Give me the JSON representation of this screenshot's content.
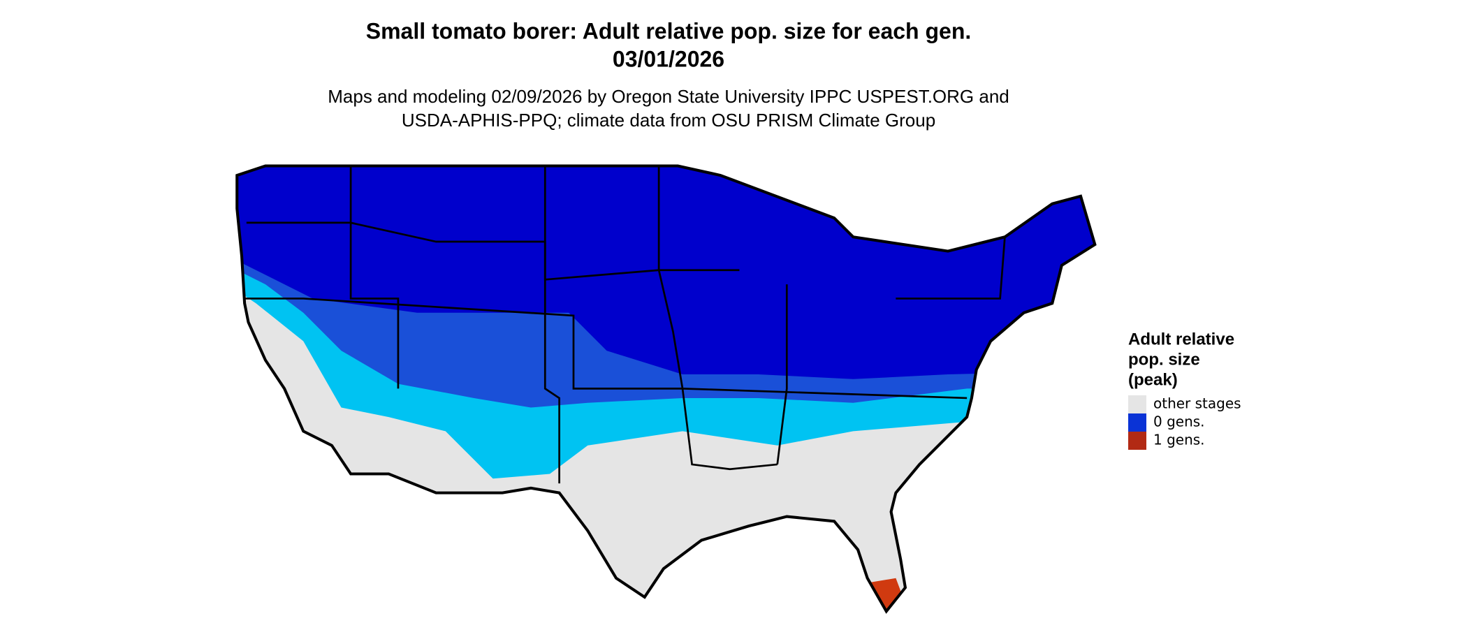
{
  "header": {
    "title": "Small tomato borer: Adult relative pop. size for each gen.",
    "date": "03/01/2026",
    "subtitle_lines": [
      "Maps and modeling 02/09/2026 by Oregon State University IPPC USPEST.ORG and",
      "USDA-APHIS-PPQ; climate data from OSU PRISM Climate Group"
    ]
  },
  "legend": {
    "title_lines": [
      "Adult relative",
      "pop. size",
      "(peak)"
    ],
    "items": [
      {
        "label": "other stages",
        "color": "#e5e5e5"
      },
      {
        "label": "0 gens.",
        "color": "#0a33d6"
      },
      {
        "label": "1 gens.",
        "color": "#b22a14"
      }
    ]
  }
}
